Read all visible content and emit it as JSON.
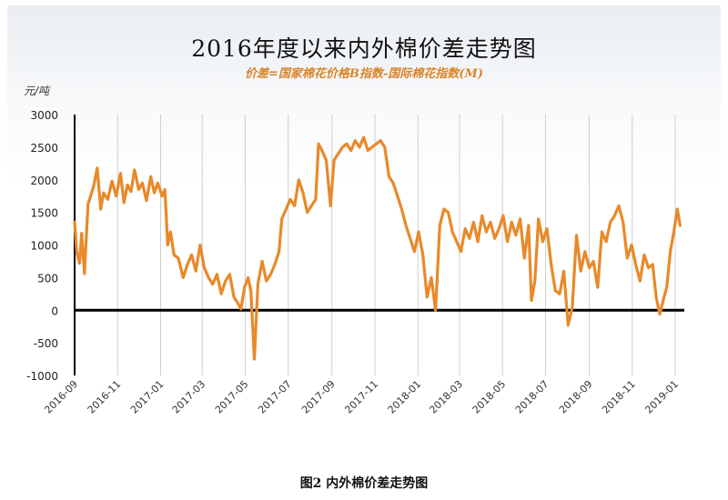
{
  "chart_data": {
    "type": "line",
    "title": "2016年度以来内外棉价差走势图",
    "subtitle": "价差=国家棉花价格B指数-国际棉花指数(M)",
    "y_unit": "元/吨",
    "caption": "图2  内外棉价差走势图",
    "ylim": [
      -1000,
      3000
    ],
    "y_ticks": [
      3000,
      2500,
      2000,
      1500,
      1000,
      500,
      0,
      -500,
      -1000
    ],
    "x_ticks": [
      "2016-09",
      "2016-11",
      "2017-01",
      "2017-03",
      "2017-05",
      "2017-07",
      "2017-09",
      "2017-11",
      "2018-01",
      "2018-03",
      "2018-05",
      "2018-07",
      "2018-09",
      "2018-11",
      "2019-01"
    ],
    "grid": "vertical",
    "line_color": "#e8892a",
    "zero_line_color": "#000000",
    "series": [
      {
        "points": [
          [
            "2016-09-01",
            1350
          ],
          [
            "2016-09-04",
            900
          ],
          [
            "2016-09-08",
            720
          ],
          [
            "2016-09-11",
            1180
          ],
          [
            "2016-09-15",
            560
          ],
          [
            "2016-09-20",
            1620
          ],
          [
            "2016-09-28",
            1900
          ],
          [
            "2016-10-03",
            2180
          ],
          [
            "2016-10-08",
            1550
          ],
          [
            "2016-10-12",
            1800
          ],
          [
            "2016-10-18",
            1700
          ],
          [
            "2016-10-24",
            1980
          ],
          [
            "2016-10-30",
            1750
          ],
          [
            "2016-11-05",
            2100
          ],
          [
            "2016-11-10",
            1650
          ],
          [
            "2016-11-15",
            1920
          ],
          [
            "2016-11-20",
            1820
          ],
          [
            "2016-11-25",
            2150
          ],
          [
            "2016-12-01",
            1850
          ],
          [
            "2016-12-06",
            1950
          ],
          [
            "2016-12-12",
            1680
          ],
          [
            "2016-12-18",
            2050
          ],
          [
            "2016-12-23",
            1800
          ],
          [
            "2016-12-28",
            1950
          ],
          [
            "2017-01-03",
            1750
          ],
          [
            "2017-01-07",
            1850
          ],
          [
            "2017-01-11",
            1000
          ],
          [
            "2017-01-15",
            1200
          ],
          [
            "2017-01-20",
            850
          ],
          [
            "2017-01-26",
            800
          ],
          [
            "2017-02-02",
            500
          ],
          [
            "2017-02-08",
            700
          ],
          [
            "2017-02-14",
            850
          ],
          [
            "2017-02-20",
            600
          ],
          [
            "2017-02-26",
            1000
          ],
          [
            "2017-03-04",
            650
          ],
          [
            "2017-03-10",
            500
          ],
          [
            "2017-03-16",
            400
          ],
          [
            "2017-03-22",
            550
          ],
          [
            "2017-03-28",
            250
          ],
          [
            "2017-04-03",
            450
          ],
          [
            "2017-04-09",
            550
          ],
          [
            "2017-04-15",
            200
          ],
          [
            "2017-04-21",
            100
          ],
          [
            "2017-04-25",
            20
          ],
          [
            "2017-04-30",
            350
          ],
          [
            "2017-05-05",
            500
          ],
          [
            "2017-05-09",
            300
          ],
          [
            "2017-05-14",
            -750
          ],
          [
            "2017-05-19",
            400
          ],
          [
            "2017-05-25",
            750
          ],
          [
            "2017-05-31",
            450
          ],
          [
            "2017-06-06",
            550
          ],
          [
            "2017-06-12",
            700
          ],
          [
            "2017-06-18",
            900
          ],
          [
            "2017-06-22",
            1400
          ],
          [
            "2017-06-28",
            1550
          ],
          [
            "2017-07-04",
            1700
          ],
          [
            "2017-07-10",
            1600
          ],
          [
            "2017-07-16",
            2000
          ],
          [
            "2017-07-22",
            1800
          ],
          [
            "2017-07-28",
            1500
          ],
          [
            "2017-08-03",
            1600
          ],
          [
            "2017-08-09",
            1700
          ],
          [
            "2017-08-13",
            2550
          ],
          [
            "2017-08-18",
            2450
          ],
          [
            "2017-08-24",
            2300
          ],
          [
            "2017-08-30",
            1600
          ],
          [
            "2017-09-04",
            2300
          ],
          [
            "2017-09-10",
            2400
          ],
          [
            "2017-09-16",
            2500
          ],
          [
            "2017-09-22",
            2550
          ],
          [
            "2017-09-28",
            2450
          ],
          [
            "2017-10-04",
            2600
          ],
          [
            "2017-10-10",
            2500
          ],
          [
            "2017-10-16",
            2650
          ],
          [
            "2017-10-22",
            2450
          ],
          [
            "2017-10-28",
            2500
          ],
          [
            "2017-11-03",
            2550
          ],
          [
            "2017-11-09",
            2600
          ],
          [
            "2017-11-15",
            2500
          ],
          [
            "2017-11-21",
            2050
          ],
          [
            "2017-11-27",
            1950
          ],
          [
            "2017-12-03",
            1750
          ],
          [
            "2017-12-09",
            1550
          ],
          [
            "2017-12-15",
            1300
          ],
          [
            "2017-12-21",
            1100
          ],
          [
            "2017-12-27",
            900
          ],
          [
            "2018-01-02",
            1200
          ],
          [
            "2018-01-08",
            850
          ],
          [
            "2018-01-14",
            200
          ],
          [
            "2018-01-20",
            500
          ],
          [
            "2018-01-26",
            0
          ],
          [
            "2018-02-01",
            1300
          ],
          [
            "2018-02-07",
            1550
          ],
          [
            "2018-02-13",
            1500
          ],
          [
            "2018-02-19",
            1200
          ],
          [
            "2018-02-25",
            1050
          ],
          [
            "2018-03-03",
            900
          ],
          [
            "2018-03-09",
            1250
          ],
          [
            "2018-03-15",
            1100
          ],
          [
            "2018-03-21",
            1350
          ],
          [
            "2018-03-27",
            1050
          ],
          [
            "2018-04-02",
            1450
          ],
          [
            "2018-04-08",
            1200
          ],
          [
            "2018-04-14",
            1350
          ],
          [
            "2018-04-20",
            1100
          ],
          [
            "2018-04-26",
            1250
          ],
          [
            "2018-05-02",
            1450
          ],
          [
            "2018-05-08",
            1050
          ],
          [
            "2018-05-14",
            1350
          ],
          [
            "2018-05-20",
            1150
          ],
          [
            "2018-05-26",
            1400
          ],
          [
            "2018-06-01",
            800
          ],
          [
            "2018-06-07",
            1300
          ],
          [
            "2018-06-11",
            150
          ],
          [
            "2018-06-16",
            450
          ],
          [
            "2018-06-21",
            1400
          ],
          [
            "2018-06-27",
            1050
          ],
          [
            "2018-07-03",
            1250
          ],
          [
            "2018-07-09",
            700
          ],
          [
            "2018-07-15",
            300
          ],
          [
            "2018-07-21",
            250
          ],
          [
            "2018-07-27",
            600
          ],
          [
            "2018-08-02",
            -230
          ],
          [
            "2018-08-08",
            50
          ],
          [
            "2018-08-14",
            1150
          ],
          [
            "2018-08-20",
            600
          ],
          [
            "2018-08-26",
            900
          ],
          [
            "2018-09-01",
            650
          ],
          [
            "2018-09-07",
            750
          ],
          [
            "2018-09-13",
            350
          ],
          [
            "2018-09-19",
            1200
          ],
          [
            "2018-09-25",
            1050
          ],
          [
            "2018-10-01",
            1350
          ],
          [
            "2018-10-07",
            1450
          ],
          [
            "2018-10-13",
            1600
          ],
          [
            "2018-10-19",
            1350
          ],
          [
            "2018-10-25",
            800
          ],
          [
            "2018-10-31",
            1000
          ],
          [
            "2018-11-06",
            700
          ],
          [
            "2018-11-12",
            450
          ],
          [
            "2018-11-18",
            850
          ],
          [
            "2018-11-24",
            650
          ],
          [
            "2018-11-30",
            700
          ],
          [
            "2018-12-05",
            200
          ],
          [
            "2018-12-10",
            -60
          ],
          [
            "2018-12-15",
            150
          ],
          [
            "2018-12-20",
            350
          ],
          [
            "2018-12-25",
            900
          ],
          [
            "2018-12-30",
            1200
          ],
          [
            "2019-01-04",
            1550
          ],
          [
            "2019-01-08",
            1300
          ]
        ]
      }
    ]
  }
}
